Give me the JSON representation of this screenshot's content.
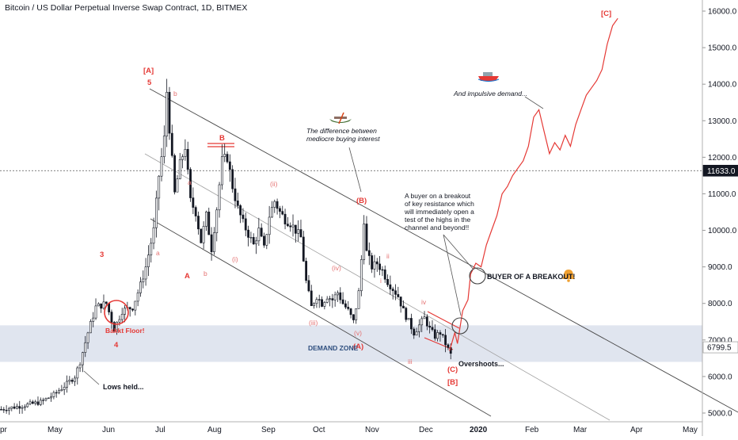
{
  "header": {
    "title": "Bitcoin / US Dollar Perpetual Inverse Swap Contract, 1D, BITMEX"
  },
  "chart_data": {
    "type": "candlestick",
    "ylim": [
      5000,
      16500
    ],
    "y_ticks": [
      5000,
      6000,
      7000,
      8000,
      9000,
      10000,
      11000,
      12000,
      13000,
      14000,
      15000,
      16000
    ],
    "y_tick_labels": [
      "5000.0",
      "6000.0",
      "7000.0",
      "8000.0",
      "9000.0",
      "10000.0",
      "11000.0",
      "12000.0",
      "13000.0",
      "14000.0",
      "15000.0",
      "16000.0"
    ],
    "x_tick_labels": [
      "pr",
      "May",
      "Jun",
      "Jul",
      "Aug",
      "Sep",
      "Oct",
      "Nov",
      "Dec",
      "2020",
      "Feb",
      "Mar",
      "Apr",
      "May"
    ],
    "price_labels": [
      {
        "text": "11633.0",
        "value": 11633,
        "style": "dark"
      },
      {
        "text": "6799.5",
        "value": 6799.5,
        "style": "light"
      }
    ],
    "price_path": [
      [
        0,
        5100
      ],
      [
        8,
        5200
      ],
      [
        15,
        5300
      ],
      [
        20,
        5500
      ],
      [
        25,
        5800
      ],
      [
        28,
        6000
      ],
      [
        30,
        6400
      ],
      [
        33,
        7200
      ],
      [
        36,
        7900
      ],
      [
        40,
        8000
      ],
      [
        43,
        7300
      ],
      [
        46,
        7800
      ],
      [
        50,
        7900
      ],
      [
        53,
        8500
      ],
      [
        55,
        9000
      ],
      [
        58,
        10000
      ],
      [
        60,
        11500
      ],
      [
        62,
        12500
      ],
      [
        63,
        13800
      ],
      [
        64,
        12800
      ],
      [
        66,
        11000
      ],
      [
        68,
        11800
      ],
      [
        70,
        12300
      ],
      [
        72,
        10800
      ],
      [
        74,
        10500
      ],
      [
        76,
        9700
      ],
      [
        78,
        10400
      ],
      [
        80,
        9500
      ],
      [
        82,
        10600
      ],
      [
        84,
        11900
      ],
      [
        86,
        12000
      ],
      [
        88,
        11200
      ],
      [
        90,
        10600
      ],
      [
        92,
        10200
      ],
      [
        94,
        9900
      ],
      [
        96,
        9600
      ],
      [
        98,
        10000
      ],
      [
        100,
        9500
      ],
      [
        102,
        10400
      ],
      [
        104,
        10800
      ],
      [
        106,
        10500
      ],
      [
        108,
        10300
      ],
      [
        110,
        10200
      ],
      [
        112,
        10000
      ],
      [
        114,
        9800
      ],
      [
        116,
        8600
      ],
      [
        118,
        7900
      ],
      [
        120,
        8200
      ],
      [
        122,
        8000
      ],
      [
        124,
        8200
      ],
      [
        126,
        8100
      ],
      [
        128,
        8300
      ],
      [
        130,
        8000
      ],
      [
        132,
        7800
      ],
      [
        134,
        7500
      ],
      [
        136,
        8300
      ],
      [
        137,
        9200
      ],
      [
        138,
        10300
      ],
      [
        139,
        9400
      ],
      [
        141,
        9000
      ],
      [
        143,
        9100
      ],
      [
        145,
        8900
      ],
      [
        147,
        8600
      ],
      [
        149,
        8400
      ],
      [
        151,
        8200
      ],
      [
        153,
        7800
      ],
      [
        155,
        7500
      ],
      [
        157,
        7200
      ],
      [
        159,
        7400
      ],
      [
        161,
        7600
      ],
      [
        163,
        7300
      ],
      [
        165,
        7100
      ],
      [
        167,
        7200
      ],
      [
        169,
        6900
      ],
      [
        171,
        6600
      ]
    ],
    "projection_path": [
      [
        171,
        6700
      ],
      [
        173,
        7200
      ],
      [
        174,
        6900
      ],
      [
        176,
        7800
      ],
      [
        178,
        8100
      ],
      [
        179,
        8800
      ],
      [
        181,
        9100
      ],
      [
        183,
        9000
      ],
      [
        185,
        9600
      ],
      [
        187,
        10000
      ],
      [
        189,
        10400
      ],
      [
        191,
        11000
      ],
      [
        193,
        11200
      ],
      [
        195,
        11500
      ],
      [
        197,
        11700
      ],
      [
        199,
        11900
      ],
      [
        201,
        12300
      ],
      [
        203,
        13100
      ],
      [
        205,
        13300
      ],
      [
        207,
        12700
      ],
      [
        209,
        12100
      ],
      [
        211,
        12400
      ],
      [
        213,
        12200
      ],
      [
        215,
        12600
      ],
      [
        217,
        12300
      ],
      [
        219,
        12900
      ],
      [
        221,
        13300
      ],
      [
        223,
        13700
      ],
      [
        225,
        13900
      ],
      [
        227,
        14100
      ],
      [
        229,
        14400
      ],
      [
        231,
        15100
      ],
      [
        233,
        15600
      ],
      [
        235,
        15800
      ]
    ],
    "demand_zone": {
      "low": 6400,
      "high": 7400
    },
    "horizontal_line": 11633
  },
  "annotations": {
    "wave_A_top": "[A]",
    "wave_5": "5",
    "wave_b_small": "b",
    "wave_B": "B",
    "wave_3": "3",
    "wave_4": "4",
    "wave_a": "a",
    "wave_a2": "a",
    "wave_A": "A",
    "wave_b2": "b",
    "wave_i_paren": "(i)",
    "wave_ii_paren": "(ii)",
    "wave_iii_paren": "(iii)",
    "wave_iv_paren": "(iv)",
    "wave_v_paren": "(v)",
    "wave_A_paren": "(A)",
    "wave_B_paren": "(B)",
    "wave_i": "i",
    "wave_ii": "ii",
    "wave_iii": "iii",
    "wave_iv": "iv",
    "wave_C_paren": "(C)",
    "wave_B_bracket": "[B]",
    "wave_C_bracket": "[C]",
    "bakkt_floor": "Bakkt Floor!",
    "lows_held": "Lows held...",
    "demand_zone": "DEMAND ZONE",
    "overshoots": "Overshoots...",
    "difference_line1": "The difference between",
    "difference_line2": "mediocre buying interest",
    "buyer_line1": "A buyer on a breakout",
    "buyer_line2": "of key resistance which",
    "buyer_line3": "will immediately open a",
    "buyer_line4": "test of the highs in the",
    "buyer_line5": "channel and beyond!!",
    "buyer_breakout": "BUYER OF A BREAKOUT!",
    "impulsive": "And impulsive demand..."
  },
  "colors": {
    "candle": "#131722",
    "red": "#e53935",
    "demand_zone": "#d6dcea",
    "channel": "#4a4a4a",
    "midline": "#9e9e9e"
  }
}
